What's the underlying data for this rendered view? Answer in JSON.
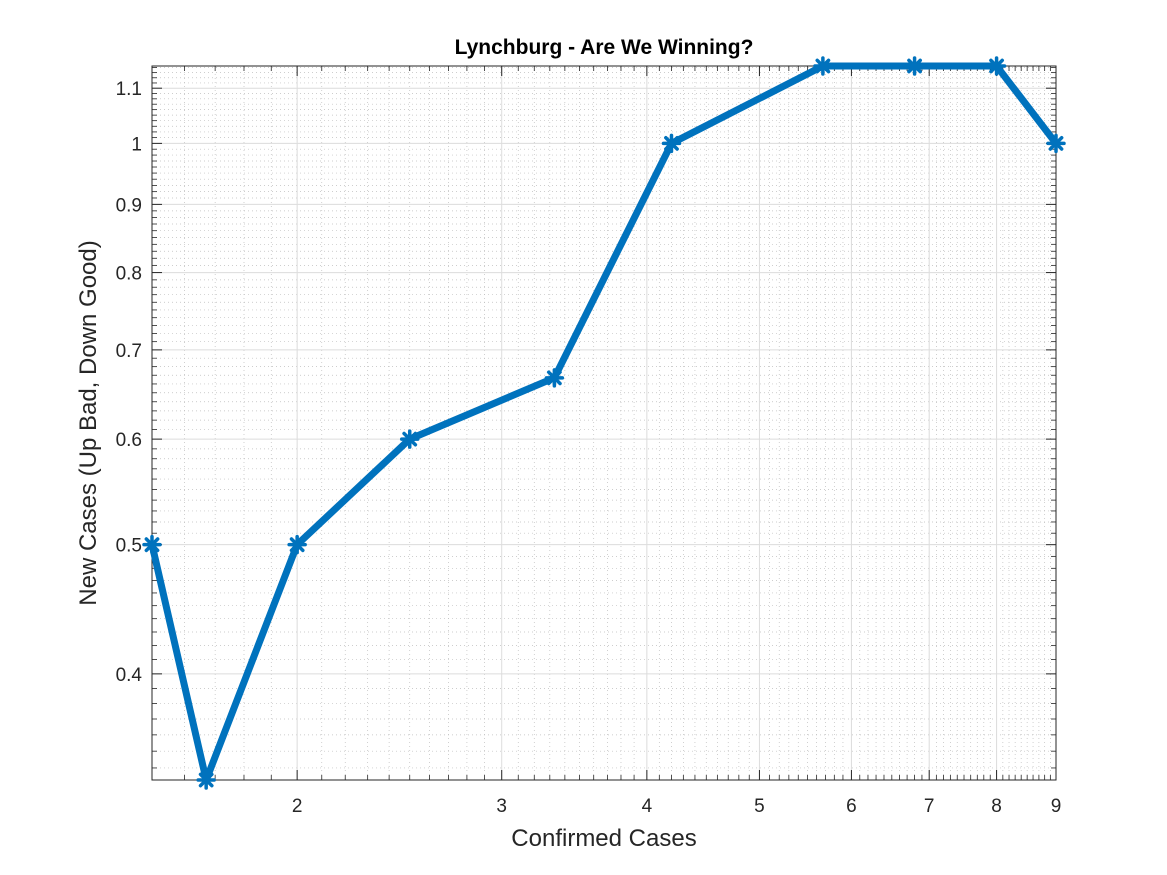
{
  "chart_data": {
    "type": "line",
    "title": "Lynchburg - Are We Winning?",
    "xlabel": "Confirmed Cases",
    "ylabel": "New Cases (Up Bad, Down Good)",
    "x_scale": "log",
    "y_scale": "log",
    "xlim": [
      1.5,
      9
    ],
    "ylim": [
      0.333,
      1.143
    ],
    "x_ticks": [
      2,
      3,
      4,
      5,
      6,
      7,
      8,
      9
    ],
    "x_tick_labels": [
      "2",
      "3",
      "4",
      "5",
      "6",
      "7",
      "8",
      "9"
    ],
    "y_ticks": [
      0.4,
      0.5,
      0.6,
      0.7,
      0.8,
      0.9,
      1,
      1.1
    ],
    "y_tick_labels": [
      "0.4",
      "0.5",
      "0.6",
      "0.7",
      "0.8",
      "0.9",
      "1",
      "1.1"
    ],
    "grid": true,
    "minor_grid": true,
    "series": [
      {
        "color": "#0072BD",
        "marker": "asterisk",
        "x": [
          1.5,
          1.67,
          2,
          2.5,
          3.33,
          4.2,
          5.67,
          6.8,
          8,
          9
        ],
        "y": [
          0.5,
          0.333,
          0.5,
          0.6,
          0.667,
          1.0,
          1.143,
          1.143,
          1.143,
          1.0
        ]
      }
    ]
  }
}
